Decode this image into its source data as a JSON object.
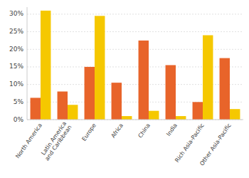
{
  "chart_data": {
    "type": "bar",
    "categories": [
      "North America",
      "Latin America\nand Caribbean",
      "Europe",
      "Africa",
      "China",
      "India",
      "Rich Asia-Pacific",
      "Other Asia-Pacific"
    ],
    "series": [
      {
        "color": "#E8642A",
        "values": [
          6.2,
          8.0,
          15.0,
          10.5,
          22.5,
          15.5,
          5.0,
          17.5
        ]
      },
      {
        "color": "#F5C800",
        "values": [
          31.0,
          4.2,
          29.5,
          1.0,
          2.5,
          1.0,
          24.0,
          3.0
        ]
      }
    ],
    "ylim": [
      0,
      32
    ],
    "yticks": [
      {
        "value": 0,
        "label": "0%"
      },
      {
        "value": 5,
        "label": "5%"
      },
      {
        "value": 10,
        "label": "10%"
      },
      {
        "value": 15,
        "label": "15%"
      },
      {
        "value": 20,
        "label": "20%"
      },
      {
        "value": 25,
        "label": "25%"
      },
      {
        "value": 30,
        "label": "30%"
      }
    ],
    "grid": true
  }
}
